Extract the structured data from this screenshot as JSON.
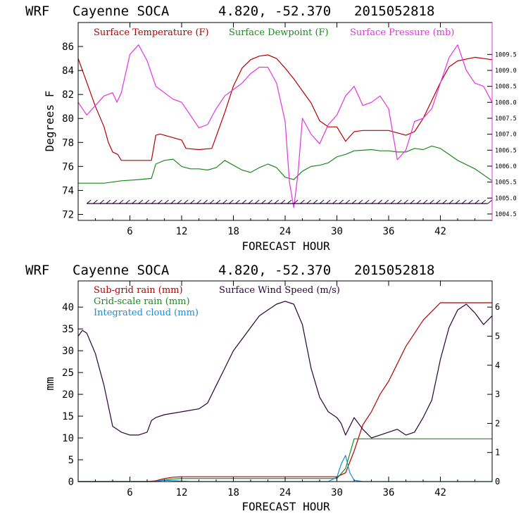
{
  "chart_data": [
    {
      "type": "line",
      "header": {
        "model": "WRF",
        "station": "Cayenne SOCA",
        "coords": "4.820, -52.370",
        "init": "2015052818"
      },
      "xlabel": "FORECAST HOUR",
      "ylabel": "Degrees F",
      "xlim": [
        0,
        48
      ],
      "ylim": [
        71.5,
        88
      ],
      "y2lim": [
        1004.3,
        1010.5
      ],
      "xticks": [
        "6",
        "12",
        "18",
        "24",
        "30",
        "36",
        "42"
      ],
      "yticks": [
        "72",
        "74",
        "76",
        "78",
        "80",
        "82",
        "84",
        "86"
      ],
      "y2ticks": [
        "1004.5",
        "1005.0",
        "1005.5",
        "1006.0",
        "1006.5",
        "1007.0",
        "1007.5",
        "1008.0",
        "1008.5",
        "1009.0",
        "1009.5"
      ],
      "colors": {
        "temp": "#b50000",
        "dew": "#1a8a1a",
        "pres": "#e233e2",
        "wind": "#2a0038"
      },
      "legend": [
        "Surface Temperature (F)",
        "Surface Dewpoint (F)",
        "Surface Pressure (mb)"
      ],
      "series": [
        {
          "name": "Surface Temperature (F)",
          "axis": "left",
          "x": [
            0,
            1,
            2,
            3,
            3.5,
            4,
            4.6,
            5,
            8.5,
            9,
            9.5,
            10,
            12,
            12.5,
            14,
            15.5,
            16,
            17,
            18,
            19,
            20,
            21,
            22,
            23,
            24,
            25,
            26,
            27,
            28,
            29,
            30,
            31,
            32,
            33,
            36,
            38,
            39,
            40,
            41,
            42,
            43,
            44,
            46,
            48
          ],
          "y": [
            85,
            83,
            81,
            79.3,
            78,
            77.2,
            77,
            76.5,
            76.5,
            78.6,
            78.7,
            78.6,
            78.2,
            77.5,
            77.4,
            77.5,
            78.5,
            80.5,
            82.7,
            84.2,
            84.9,
            85.2,
            85.3,
            85,
            84.2,
            83.3,
            82.3,
            81.3,
            79.8,
            79.3,
            79.3,
            78.1,
            78.9,
            79,
            79,
            78.6,
            78.9,
            80,
            81.5,
            83,
            84.3,
            84.8,
            85.1,
            84.9
          ]
        },
        {
          "name": "Surface Dewpoint (F)",
          "axis": "left",
          "x": [
            0,
            1,
            3,
            5,
            7,
            8.5,
            9,
            10,
            11,
            12,
            13,
            14,
            15,
            16,
            17,
            18,
            19,
            20,
            21,
            22,
            23,
            24,
            25,
            26,
            27,
            28,
            29,
            30,
            31,
            32,
            34,
            35,
            36,
            37,
            38,
            39,
            40,
            41,
            42,
            44,
            46,
            48
          ],
          "y": [
            74.6,
            74.6,
            74.6,
            74.8,
            74.9,
            75,
            76.2,
            76.5,
            76.6,
            76,
            75.8,
            75.8,
            75.7,
            75.9,
            76.5,
            76.1,
            75.7,
            75.5,
            75.9,
            76.2,
            75.9,
            75.1,
            74.9,
            75.6,
            76,
            76.1,
            76.3,
            76.8,
            77,
            77.3,
            77.4,
            77.3,
            77.3,
            77.2,
            77.2,
            77.5,
            77.4,
            77.7,
            77.5,
            76.5,
            75.8,
            74.8
          ]
        },
        {
          "name": "Surface Pressure (mb)",
          "axis": "right",
          "x": [
            0,
            1,
            2,
            3,
            4,
            4.5,
            5,
            6,
            7,
            8,
            9,
            10,
            11,
            12,
            13,
            14,
            15,
            16,
            17,
            18,
            19,
            20,
            21,
            22,
            23,
            24,
            24.5,
            25,
            25.5,
            26,
            27,
            28,
            29,
            30,
            31,
            32,
            33,
            34,
            35,
            36,
            37,
            38,
            39,
            40,
            41,
            42,
            43,
            44,
            45,
            46,
            47,
            48
          ],
          "y": [
            1008,
            1007.6,
            1007.9,
            1008.2,
            1008.3,
            1008,
            1008.3,
            1009.5,
            1009.8,
            1009.3,
            1008.5,
            1008.3,
            1008.1,
            1008,
            1007.6,
            1007.2,
            1007.3,
            1007.8,
            1008.2,
            1008.4,
            1008.6,
            1008.9,
            1009.1,
            1009.1,
            1008.6,
            1007.4,
            1005.5,
            1004.7,
            1005.8,
            1007.5,
            1007,
            1006.7,
            1007.3,
            1007.6,
            1008.2,
            1008.5,
            1007.9,
            1008,
            1008.2,
            1007.8,
            1006.2,
            1006.5,
            1007.4,
            1007.5,
            1007.8,
            1008.6,
            1009.4,
            1009.8,
            1009,
            1008.6,
            1008.5,
            1008
          ]
        }
      ]
    },
    {
      "type": "line",
      "header": {
        "model": "WRF",
        "station": "Cayenne SOCA",
        "coords": "4.820, -52.370",
        "init": "2015052818"
      },
      "xlabel": "FORECAST HOUR",
      "ylabel": "mm",
      "xlim": [
        0,
        48
      ],
      "ylim": [
        0,
        46
      ],
      "y2lim": [
        0,
        6.9
      ],
      "xticks": [
        "6",
        "12",
        "18",
        "24",
        "30",
        "36",
        "42"
      ],
      "yticks": [
        "0",
        "5",
        "10",
        "15",
        "20",
        "25",
        "30",
        "35",
        "40"
      ],
      "y2ticks": [
        "0",
        "1",
        "2",
        "3",
        "4",
        "5",
        "6"
      ],
      "colors": {
        "subgrid": "#b50000",
        "grid": "#1a8a1a",
        "cloud": "#1a8cd8",
        "wind": "#2a0038"
      },
      "legend": [
        "Sub-grid rain (mm)",
        "Grid-scale rain (mm)",
        "Integrated cloud (mm)",
        "Surface Wind Speed (m/s)"
      ],
      "series": [
        {
          "name": "Sub-grid rain (mm)",
          "axis": "left",
          "x": [
            0,
            8,
            9,
            10,
            11,
            12,
            30,
            31,
            32,
            33,
            34,
            35,
            36,
            37,
            38,
            39,
            40,
            41,
            42,
            44,
            48
          ],
          "y": [
            0,
            0,
            0.2,
            0.7,
            1,
            1.1,
            1.1,
            2,
            7,
            13,
            16,
            20,
            23,
            27,
            31,
            34,
            37,
            39,
            41,
            41,
            41
          ]
        },
        {
          "name": "Grid-scale rain (mm)",
          "axis": "left",
          "x": [
            0,
            9,
            10,
            11,
            12,
            30,
            31,
            32,
            48
          ],
          "y": [
            0,
            0,
            0.4,
            0.6,
            0.7,
            0.7,
            3,
            9.8,
            9.8
          ]
        },
        {
          "name": "Integrated cloud (mm)",
          "axis": "left",
          "x": [
            0,
            8,
            9,
            10,
            11,
            12,
            13,
            29,
            30,
            30.5,
            31,
            31.5,
            32,
            33,
            48
          ],
          "y": [
            0,
            0,
            0.1,
            0.3,
            0.2,
            0.1,
            0,
            0,
            1,
            4,
            6,
            2,
            0.3,
            0,
            0
          ]
        },
        {
          "name": "Surface Wind Speed (m/s)",
          "axis": "right",
          "x": [
            0,
            0.5,
            1,
            2,
            3,
            4,
            5,
            6,
            7,
            8,
            8.5,
            9,
            10,
            12,
            14,
            15,
            16,
            17,
            18,
            19,
            20,
            21,
            22,
            23,
            24,
            25,
            26,
            27,
            28,
            29,
            30,
            30.5,
            31,
            32,
            33,
            34,
            35,
            36,
            37,
            38,
            39,
            40,
            41,
            42,
            43,
            44,
            45,
            46,
            47,
            48
          ],
          "y": [
            5,
            5.2,
            5.1,
            4.4,
            3.3,
            1.9,
            1.7,
            1.6,
            1.6,
            1.7,
            2.1,
            2.2,
            2.3,
            2.4,
            2.5,
            2.7,
            3.3,
            3.9,
            4.5,
            4.9,
            5.3,
            5.7,
            5.9,
            6.1,
            6.2,
            6.1,
            5.4,
            3.9,
            2.9,
            2.4,
            2.2,
            2,
            1.6,
            2.2,
            1.8,
            1.5,
            1.6,
            1.7,
            1.8,
            1.6,
            1.7,
            2.2,
            2.8,
            4.2,
            5.3,
            5.9,
            6.1,
            5.8,
            5.4,
            5.7
          ]
        }
      ]
    }
  ]
}
